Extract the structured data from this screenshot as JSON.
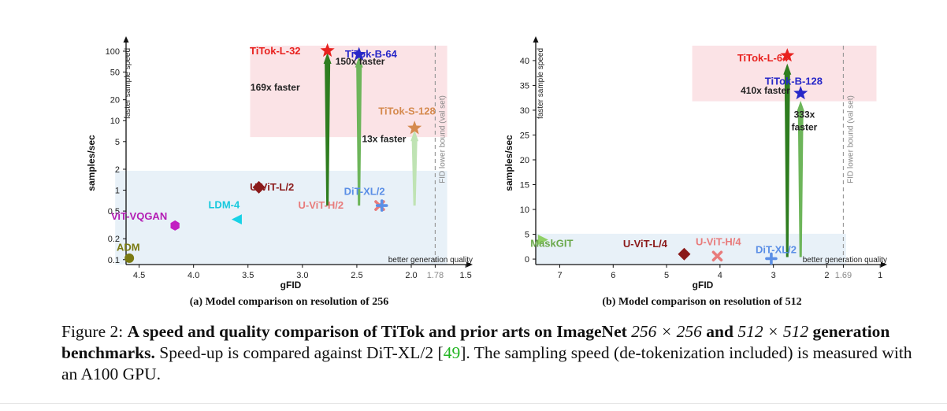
{
  "figure": {
    "caption": {
      "label": "Figure 2: ",
      "bold_1": "A speed and quality comparison of TiTok and prior arts on ImageNet ",
      "math_1": "256 × 256",
      "bold_2": " and ",
      "math_2": "512 × 512",
      "bold_3": " generation benchmarks.",
      "plain_1": " Speed-up is compared against DiT-XL/2 [",
      "ref": "49",
      "plain_2": "]. The sampling speed (de-tokenization included) is measured with an A100 GPU."
    }
  },
  "chart_data": [
    {
      "type": "scatter",
      "subcaption": "(a) Model comparison on resolution of 256",
      "xlabel": "gFID",
      "ylabel": "samples/sec",
      "y_note": "faster sample speed",
      "x_note": "better generation quality",
      "x_reversed": true,
      "y_scale": "log",
      "xlim": [
        4.62,
        1.45
      ],
      "ylim": [
        0.085,
        120
      ],
      "x_ticks": [
        4.5,
        4.0,
        3.5,
        3.0,
        2.5,
        2.0,
        1.78,
        1.5
      ],
      "x_tick_labels": [
        "4.5",
        "4.0",
        "3.5",
        "3.0",
        "2.5",
        "2.0",
        "1.78",
        "1.5"
      ],
      "y_ticks": [
        0.1,
        0.2,
        0.5,
        1,
        2,
        5,
        10,
        20,
        50,
        100
      ],
      "y_tick_labels": [
        "0.1",
        "0.2",
        "0.5",
        "1",
        "2",
        "5",
        "10",
        "20",
        "50",
        "100"
      ],
      "fid_bound": {
        "x": 1.78,
        "label": "FID lower bound (val set)"
      },
      "regions": [
        {
          "kind": "titok",
          "x": [
            3.48,
            1.67
          ],
          "y": [
            5.8,
            120
          ],
          "color": "#fbe3e6"
        },
        {
          "kind": "prior",
          "x": [
            4.72,
            1.67
          ],
          "y": [
            0.085,
            1.9
          ],
          "color": "#e8f1f8"
        }
      ],
      "points": [
        {
          "label": "ADM",
          "x": 4.59,
          "y": 0.105,
          "marker": "circle",
          "color": "#7a7a12",
          "label_color": "#7a7a12",
          "label_pos": [
            4.6,
            0.148
          ]
        },
        {
          "label": "ViT-VQGAN",
          "x": 4.17,
          "y": 0.31,
          "marker": "hexagon",
          "color": "#c21fc2",
          "label_color": "#b31bb3",
          "label_pos": [
            4.5,
            0.42
          ]
        },
        {
          "label": "LDM-4",
          "x": 3.6,
          "y": 0.38,
          "marker": "triangle-left",
          "color": "#17d2e6",
          "label_color": "#17c9dd",
          "label_pos": [
            3.72,
            0.61
          ]
        },
        {
          "label": "U-ViT-L/2",
          "x": 3.4,
          "y": 1.1,
          "marker": "diamond",
          "color": "#8b1a1a",
          "label_color": "#8b1a1a",
          "label_pos": [
            3.28,
            1.1
          ]
        },
        {
          "label": "U-ViT-H/2",
          "x": 2.29,
          "y": 0.6,
          "marker": "x",
          "color": "#e87b7b",
          "label_color": "#e87b7b",
          "label_pos": [
            2.83,
            0.6
          ]
        },
        {
          "label": "DiT-XL/2",
          "x": 2.27,
          "y": 0.6,
          "marker": "plus",
          "color": "#5b8fe6",
          "label_color": "#5b8fe6",
          "label_pos": [
            2.43,
            0.95
          ]
        },
        {
          "label": "TiTok-L-32",
          "x": 2.77,
          "y": 101.6,
          "marker": "star",
          "color": "#e8221f",
          "label_color": "#e8221f",
          "label_pos": [
            3.25,
            100
          ]
        },
        {
          "label": "TiTok-B-64",
          "x": 2.48,
          "y": 89.8,
          "marker": "star",
          "color": "#2727c8",
          "label_color": "#2727c8",
          "label_pos": [
            2.37,
            90
          ]
        },
        {
          "label": "TiTok-S-128",
          "x": 1.97,
          "y": 7.8,
          "marker": "star",
          "color": "#d58a4e",
          "label_color": "#d58a4e",
          "label_pos": [
            2.04,
            13.5
          ]
        }
      ],
      "arrows": [
        {
          "x": 2.77,
          "y_from": 0.6,
          "y_to": 95,
          "color": "#2e7d1f",
          "label": "169x faster",
          "label_pos": [
            3.25,
            27
          ]
        },
        {
          "x": 2.48,
          "y_from": 0.6,
          "y_to": 84,
          "color": "#6db55a",
          "label": "150x faster",
          "label_pos": [
            2.47,
            64
          ]
        },
        {
          "x": 1.97,
          "y_from": 0.6,
          "y_to": 7.3,
          "color": "#bfe3b3",
          "label": "13x faster",
          "label_pos": [
            2.25,
            4.9
          ]
        }
      ]
    },
    {
      "type": "scatter",
      "subcaption": "(b) Model comparison on resolution of 512",
      "xlabel": "gFID",
      "ylabel": "samples/sec",
      "y_note": "faster sample speed",
      "x_note": "better generation quality",
      "x_reversed": true,
      "y_scale": "linear",
      "xlim": [
        7.45,
        0.9
      ],
      "ylim": [
        -1.1,
        43
      ],
      "x_ticks": [
        7,
        6,
        5,
        4,
        3,
        2,
        1.69,
        1
      ],
      "x_tick_labels": [
        "7",
        "6",
        "5",
        "4",
        "3",
        "2",
        "1.69",
        "1"
      ],
      "y_ticks": [
        0,
        5,
        10,
        15,
        20,
        25,
        30,
        35,
        40
      ],
      "y_tick_labels": [
        "0",
        "5",
        "10",
        "15",
        "20",
        "25",
        "30",
        "35",
        "40"
      ],
      "fid_bound": {
        "x": 1.69,
        "label": "FID lower bound (val set)"
      },
      "regions": [
        {
          "kind": "titok",
          "x": [
            4.52,
            1.07
          ],
          "y": [
            31.8,
            43
          ],
          "color": "#fbe3e6"
        },
        {
          "kind": "prior",
          "x": [
            7.45,
            1.64
          ],
          "y": [
            -1.1,
            5.1
          ],
          "color": "#e8f1f8"
        }
      ],
      "points": [
        {
          "label": "MaskGIT",
          "x": 7.32,
          "y": 3.9,
          "marker": "triangle-right",
          "color": "#8fd066",
          "label_color": "#6aa84a",
          "label_pos": [
            7.15,
            3.1
          ]
        },
        {
          "label": "U-ViT-L/4",
          "x": 4.67,
          "y": 1.0,
          "marker": "diamond",
          "color": "#8b1a1a",
          "label_color": "#8b1a1a",
          "label_pos": [
            5.4,
            3.0
          ]
        },
        {
          "label": "U-ViT-H/4",
          "x": 4.05,
          "y": 0.6,
          "marker": "x",
          "color": "#e87b7b",
          "label_color": "#e87b7b",
          "label_pos": [
            4.03,
            3.4
          ]
        },
        {
          "label": "DiT-XL/2",
          "x": 3.04,
          "y": 0.1,
          "marker": "plus",
          "color": "#5b8fe6",
          "label_color": "#5b8fe6",
          "label_pos": [
            2.95,
            1.8
          ]
        },
        {
          "label": "TiTok-L-64",
          "x": 2.74,
          "y": 41.0,
          "marker": "star",
          "color": "#e8221f",
          "label_color": "#e8221f",
          "label_pos": [
            3.2,
            40.5
          ]
        },
        {
          "label": "TiTok-B-128",
          "x": 2.49,
          "y": 33.4,
          "marker": "star",
          "color": "#2727c8",
          "label_color": "#2727c8",
          "label_pos": [
            2.62,
            35.8
          ]
        },
        {
          "label": "",
          "x": 4.6,
          "y": 0.0,
          "marker": "none",
          "color": "#000000",
          "label_color": "#000000",
          "label_pos": [
            0,
            0
          ]
        }
      ],
      "arrows": [
        {
          "x": 2.74,
          "y_from": 0.4,
          "y_to": 39.4,
          "color": "#2e7d1f",
          "label": "410x faster",
          "label_pos": [
            3.15,
            33.3
          ]
        },
        {
          "x": 2.49,
          "y_from": 0.4,
          "y_to": 31.9,
          "color": "#6db55a",
          "label": "333x",
          "label_pos": [
            2.42,
            28.5
          ],
          "label2": "faster"
        }
      ]
    }
  ]
}
